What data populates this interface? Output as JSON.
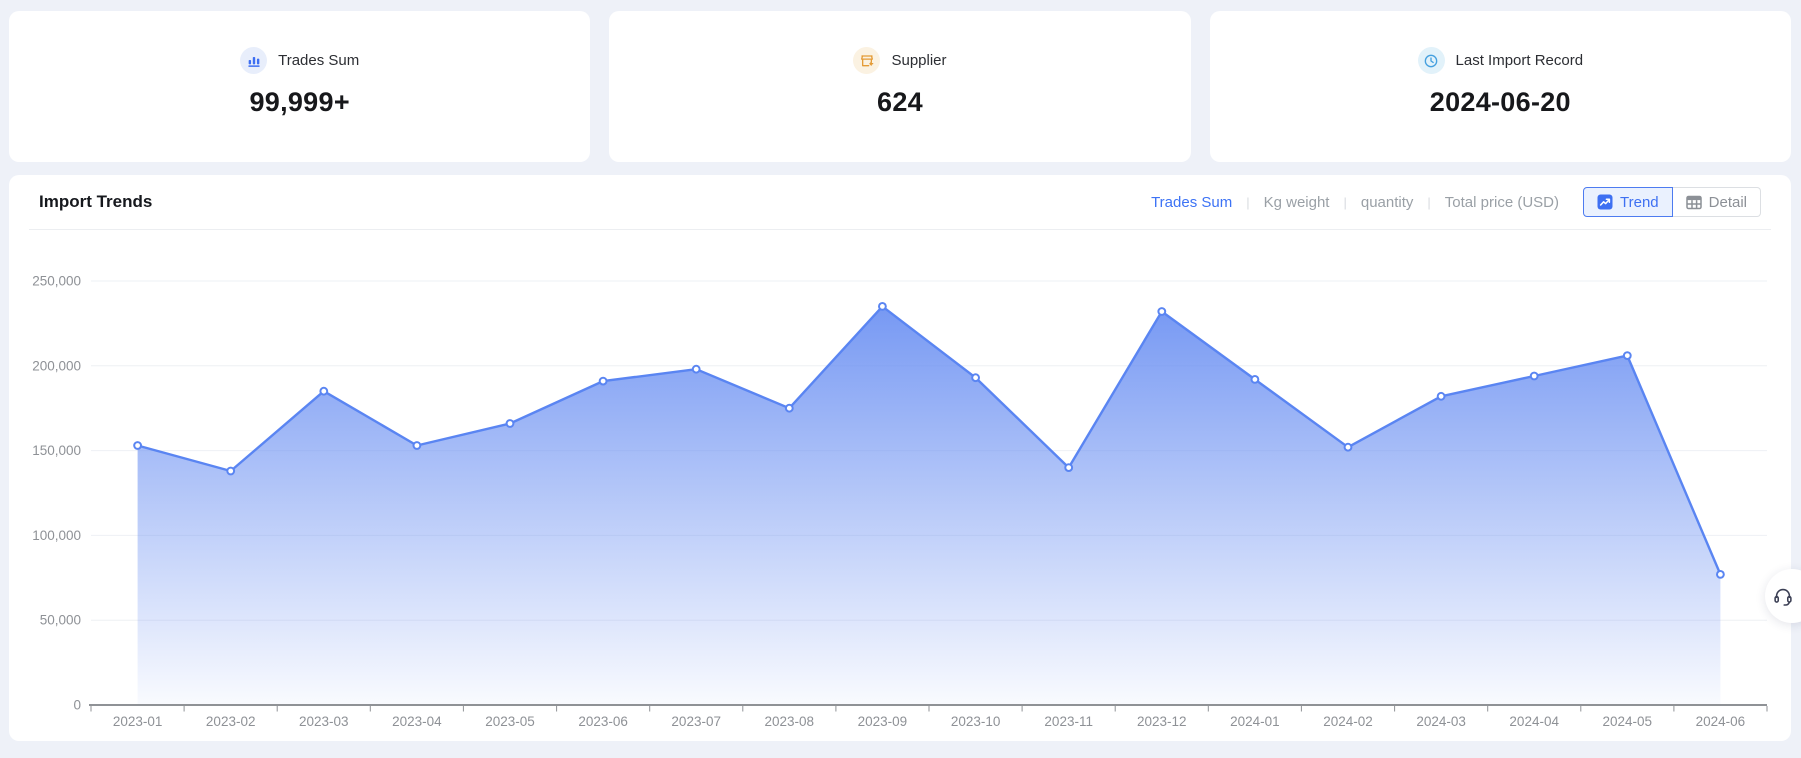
{
  "stat_cards": [
    {
      "label": "Trades Sum",
      "value": "99,999+",
      "icon": "bar-chart-icon",
      "accent": "#3D6EF2",
      "accent_bg": "#E8EEFB"
    },
    {
      "label": "Supplier",
      "value": "624",
      "icon": "storefront-icon",
      "accent": "#E49B36",
      "accent_bg": "#FBF2E2"
    },
    {
      "label": "Last Import Record",
      "value": "2024-06-20",
      "icon": "clock-icon",
      "accent": "#45A0DF",
      "accent_bg": "#E2F2FA"
    }
  ],
  "trends_panel": {
    "title": "Import Trends",
    "metric_tabs": [
      {
        "label": "Trades Sum",
        "active": true
      },
      {
        "label": "Kg weight",
        "active": false
      },
      {
        "label": "quantity",
        "active": false
      },
      {
        "label": "Total price (USD)",
        "active": false
      }
    ],
    "view_toggle": [
      {
        "label": "Trend",
        "icon": "trend-chart-icon",
        "active": true
      },
      {
        "label": "Detail",
        "icon": "table-icon",
        "active": false
      }
    ]
  },
  "chart_data": {
    "type": "area",
    "title": "Import Trends",
    "x": [
      "2023-01",
      "2023-02",
      "2023-03",
      "2023-04",
      "2023-05",
      "2023-06",
      "2023-07",
      "2023-08",
      "2023-09",
      "2023-10",
      "2023-11",
      "2023-12",
      "2024-01",
      "2024-02",
      "2024-03",
      "2024-04",
      "2024-05",
      "2024-06"
    ],
    "series": [
      {
        "name": "Trades Sum",
        "values": [
          153000,
          138000,
          185000,
          153000,
          166000,
          191000,
          198000,
          175000,
          235000,
          193000,
          140000,
          232000,
          192000,
          152000,
          182000,
          194000,
          206000,
          77000
        ]
      }
    ],
    "ylim": [
      0,
      250000
    ],
    "yticks": [
      0,
      50000,
      100000,
      150000,
      200000,
      250000
    ],
    "grid": "horizontal",
    "legend": "none",
    "line_color": "#5A85F2",
    "point_style": "hollow-circle",
    "area_gradient_top": "rgba(107,144,242,0.92)",
    "area_gradient_bottom": "rgba(107,144,242,0.04)",
    "axis_color": "#8F9296",
    "label_color": "#8E9196",
    "gridline_color": "#EEF0F4"
  },
  "support": {
    "icon": "headset-icon"
  },
  "colors": {
    "page_bg": "#EEF1F8",
    "panel_bg": "#FFFFFF",
    "active_blue": "#3D73F5",
    "inactive_gray": "#9AA0A6"
  }
}
